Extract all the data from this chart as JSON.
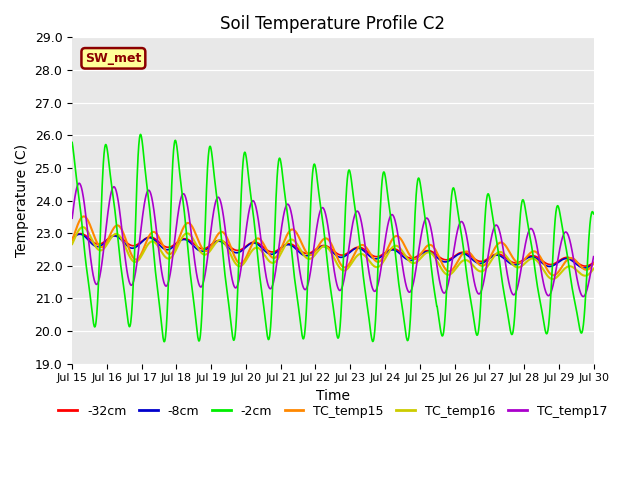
{
  "title": "Soil Temperature Profile C2",
  "xlabel": "Time",
  "ylabel": "Temperature (C)",
  "ylim": [
    19.0,
    29.0
  ],
  "yticks": [
    19.0,
    20.0,
    21.0,
    22.0,
    23.0,
    24.0,
    25.0,
    26.0,
    27.0,
    28.0,
    29.0
  ],
  "xtick_labels": [
    "Jul 15",
    "Jul 16",
    "Jul 17",
    "Jul 18",
    "Jul 19",
    "Jul 20",
    "Jul 21",
    "Jul 22",
    "Jul 23",
    "Jul 24",
    "Jul 25",
    "Jul 26",
    "Jul 27",
    "Jul 28",
    "Jul 29",
    "Jul 30"
  ],
  "background_color": "#e8e8e8",
  "sw_met_label": "SW_met",
  "sw_met_bg": "#ffff99",
  "sw_met_edge": "#8b0000",
  "legend_entries": [
    "-32cm",
    "-8cm",
    "-2cm",
    "TC_temp15",
    "TC_temp16",
    "TC_temp17"
  ],
  "line_colors": [
    "#ff0000",
    "#0000cc",
    "#00ee00",
    "#ff8800",
    "#cccc00",
    "#aa00cc"
  ],
  "line_widths": [
    1.2,
    1.2,
    1.2,
    1.5,
    1.5,
    1.2
  ],
  "plot_bg": "#dcdcdc"
}
